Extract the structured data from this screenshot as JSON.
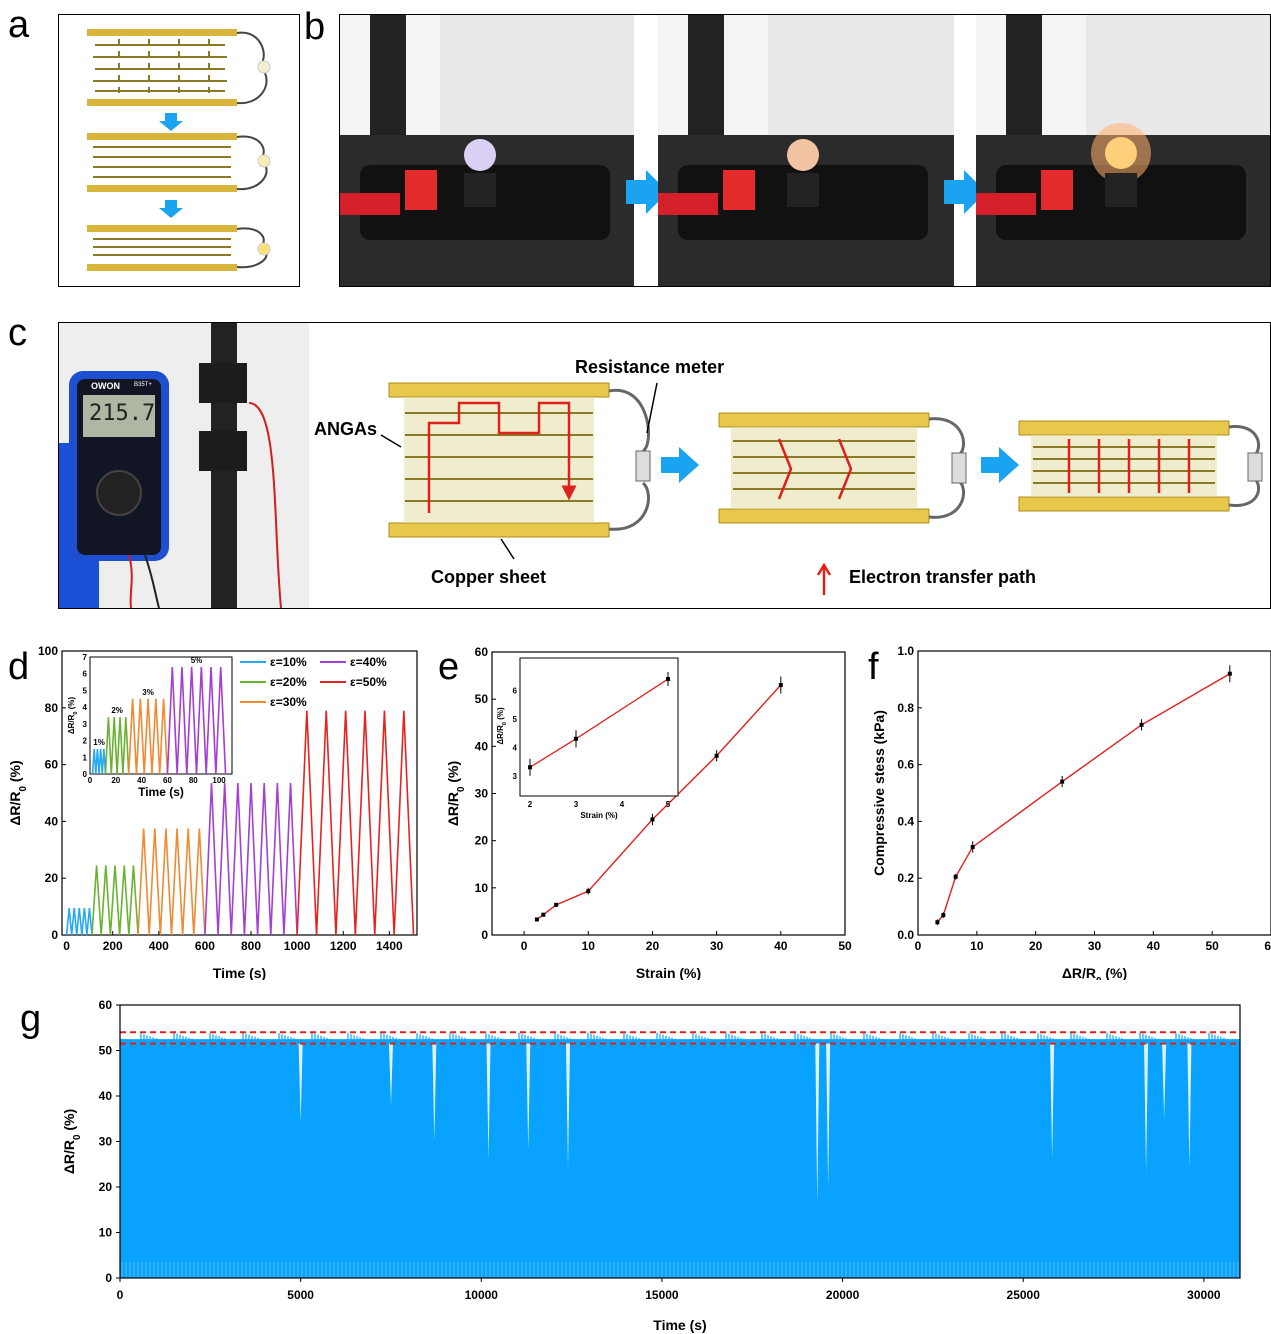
{
  "panels": {
    "a": {
      "label": "a"
    },
    "b": {
      "label": "b"
    },
    "c": {
      "label": "c",
      "labels": {
        "resistance_meter": "Resistance meter",
        "angas": "ANGAs",
        "copper_sheet": "Copper sheet",
        "electron_path": "Electron transfer path"
      },
      "multimeter": {
        "brand": "OWON",
        "model": "B35T+",
        "reading": "215.7"
      }
    },
    "d": {
      "label": "d"
    },
    "e": {
      "label": "e"
    },
    "f": {
      "label": "f"
    },
    "g": {
      "label": "g"
    }
  },
  "colors": {
    "arrow_blue": "#1aa3f0",
    "gold": "#e8c84a",
    "red": "#e0201b",
    "eps10": "#26a9f2",
    "eps20": "#6ab231",
    "eps30": "#f08a33",
    "eps40": "#a43fd3",
    "eps50": "#e3241f",
    "cycle_blue": "#0aa2ff"
  },
  "chart_data": [
    {
      "id": "d",
      "type": "line",
      "xlabel": "Time (s)",
      "ylabel": "ΔR/R0 (%)",
      "xlim": [
        -20,
        1520
      ],
      "ylim": [
        0,
        100
      ],
      "xticks": [
        0,
        200,
        400,
        600,
        800,
        1000,
        1200,
        1400
      ],
      "yticks": [
        0,
        20,
        40,
        60,
        80,
        100
      ],
      "series": [
        {
          "name": "ε=10%",
          "color": "#26a9f2",
          "t_start": 0,
          "t_end": 110,
          "peak": 9.5,
          "cycles": 5
        },
        {
          "name": "ε=20%",
          "color": "#6ab231",
          "t_start": 110,
          "t_end": 310,
          "peak": 24.5,
          "cycles": 5
        },
        {
          "name": "ε=30%",
          "color": "#f08a33",
          "t_start": 310,
          "t_end": 600,
          "peak": 37.5,
          "cycles": 6
        },
        {
          "name": "ε=40%",
          "color": "#a43fd3",
          "t_start": 600,
          "t_end": 1000,
          "peak": 53.5,
          "cycles": 7
        },
        {
          "name": "ε=50%",
          "color": "#e3241f",
          "t_start": 1000,
          "t_end": 1505,
          "peak": 79,
          "cycles": 6
        }
      ],
      "inset": {
        "xlabel": "Time (s)",
        "ylabel": "ΔR/R0 (%)",
        "xlim": [
          0,
          110
        ],
        "ylim": [
          0,
          7
        ],
        "xticks": [
          0,
          20,
          40,
          60,
          80,
          100
        ],
        "yticks": [
          0,
          1,
          2,
          3,
          4,
          5,
          6,
          7
        ],
        "series": [
          {
            "name": "1%",
            "color": "#26a9f2",
            "t_start": 2,
            "t_end": 12,
            "peak": 1.5,
            "cycles": 4
          },
          {
            "name": "2%",
            "color": "#6ab231",
            "t_start": 12,
            "t_end": 30,
            "peak": 3.4,
            "cycles": 4
          },
          {
            "name": "3%",
            "color": "#f08a33",
            "t_start": 30,
            "t_end": 60,
            "peak": 4.5,
            "cycles": 5
          },
          {
            "name": "5%",
            "color": "#a43fd3",
            "t_start": 60,
            "t_end": 105,
            "peak": 6.4,
            "cycles": 6
          }
        ]
      }
    },
    {
      "id": "e",
      "type": "line",
      "xlabel": "Strain (%)",
      "ylabel": "ΔR/R0 (%)",
      "xlim": [
        -5,
        50
      ],
      "ylim": [
        0,
        60
      ],
      "xticks": [
        0,
        10,
        20,
        30,
        40,
        50
      ],
      "yticks": [
        0,
        10,
        20,
        30,
        40,
        50,
        60
      ],
      "x": [
        2,
        3,
        5,
        10,
        20,
        30,
        40
      ],
      "y": [
        3.3,
        4.3,
        6.4,
        9.3,
        24.5,
        38,
        53
      ],
      "err": [
        0.4,
        0.4,
        0.4,
        0.7,
        1.2,
        1.2,
        1.8
      ],
      "inset": {
        "xlabel": "Strain (%)",
        "ylabel": "ΔR/R0 (%)",
        "xlim": [
          2,
          5
        ],
        "ylim": [
          2.5,
          7
        ],
        "xticks": [
          2,
          3,
          4,
          5
        ],
        "yticks": [
          3,
          4,
          5,
          6
        ],
        "x": [
          2,
          3,
          5
        ],
        "y": [
          3.3,
          4.3,
          6.4
        ],
        "err": [
          0.3,
          0.3,
          0.25
        ]
      }
    },
    {
      "id": "f",
      "type": "line",
      "xlabel": "ΔR/R0 (%)",
      "ylabel": "Compressive stess (kPa)",
      "xlim": [
        0,
        60
      ],
      "ylim": [
        0,
        1.0
      ],
      "xticks": [
        0,
        10,
        20,
        30,
        40,
        50,
        60
      ],
      "yticks": [
        0.0,
        0.2,
        0.4,
        0.6,
        0.8,
        1.0
      ],
      "x": [
        3.3,
        4.3,
        6.4,
        9.3,
        24.5,
        38,
        53
      ],
      "y": [
        0.045,
        0.07,
        0.205,
        0.31,
        0.54,
        0.74,
        0.92
      ],
      "err": [
        0.01,
        0.01,
        0.01,
        0.02,
        0.02,
        0.02,
        0.03
      ]
    },
    {
      "id": "g",
      "type": "area",
      "xlabel": "Time (s)",
      "ylabel": "ΔR/R0 (%)",
      "xlim": [
        0,
        31000
      ],
      "ylim": [
        0,
        60
      ],
      "xticks": [
        0,
        5000,
        10000,
        15000,
        20000,
        25000,
        30000
      ],
      "yticks": [
        0,
        10,
        20,
        30,
        40,
        50,
        60
      ],
      "peak_band": [
        51.5,
        54
      ],
      "dashed_lines": [
        51.5,
        54
      ],
      "dips": [
        [
          5000,
          34
        ],
        [
          7500,
          38
        ],
        [
          8700,
          30
        ],
        [
          10200,
          26
        ],
        [
          11300,
          28
        ],
        [
          12400,
          24
        ],
        [
          19300,
          16
        ],
        [
          19600,
          20
        ],
        [
          25800,
          26
        ],
        [
          28400,
          23
        ],
        [
          28900,
          35
        ],
        [
          29600,
          24
        ]
      ]
    }
  ]
}
